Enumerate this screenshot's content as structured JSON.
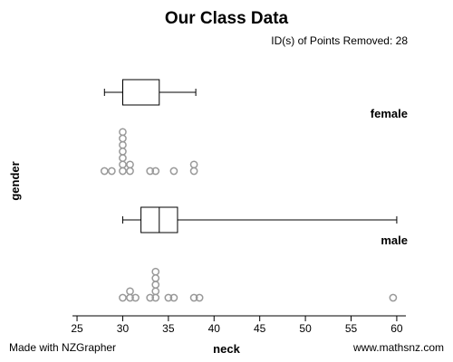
{
  "title": "Our Class Data",
  "subtitle": "ID(s) of Points Removed: 28",
  "footer": {
    "left": "Made with NZGrapher",
    "right": "www.mathsnz.com"
  },
  "chart_data": {
    "type": "boxplot-dotplot",
    "xlabel": "neck",
    "ylabel": "gender",
    "xlim": [
      24.5,
      61
    ],
    "xticks": [
      25,
      30,
      35,
      40,
      45,
      50,
      55,
      60
    ],
    "dot_color": "#999999",
    "groups": [
      {
        "name": "female",
        "box": {
          "min": 28,
          "q1": 30,
          "median": 30,
          "q3": 34,
          "max": 38
        },
        "points": [
          28,
          28.8,
          30,
          30,
          30,
          30,
          30,
          30,
          30,
          30.8,
          30.8,
          33,
          33.6,
          35.6,
          37.8,
          37.8
        ]
      },
      {
        "name": "male",
        "box": {
          "min": 30,
          "q1": 32,
          "median": 34,
          "q3": 36,
          "max": 60
        },
        "points": [
          30,
          30.8,
          30.8,
          31.4,
          33,
          33.6,
          33.6,
          33.6,
          33.6,
          33.6,
          35,
          35.6,
          37.8,
          38.4,
          59.6
        ]
      }
    ]
  }
}
